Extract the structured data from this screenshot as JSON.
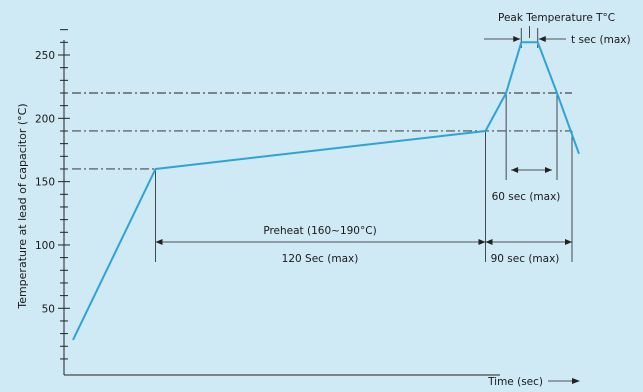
{
  "chart_data": {
    "type": "line",
    "title": "",
    "xlabel": "Time (sec)",
    "ylabel": "Temperature at lead of capacitor (°C)",
    "ylim": [
      10,
      275
    ],
    "y_ticks": [
      "50",
      "100",
      "150",
      "200",
      "250"
    ],
    "y_tick_values": [
      50,
      100,
      150,
      200,
      250
    ],
    "grid": false,
    "series": [
      {
        "x": [
          0,
          30,
          150,
          157.5,
          163,
          169,
          176,
          184
        ],
        "y": [
          25,
          160,
          190,
          220,
          260,
          260,
          220,
          172
        ]
      }
    ],
    "reference_levels": [
      160,
      190,
      220
    ],
    "annotations": {
      "peak": "Peak Temperature T°C",
      "t_sec": "t sec (max)",
      "sixty": "60 sec (max)",
      "preheat": "Preheat (160~190°C)",
      "preheat_time": "120 Sec (max)",
      "ninety": "90 sec (max)"
    },
    "colors": {
      "background": "#cfe9f5",
      "curve": "#2ea3d6",
      "axis": "#222222"
    }
  }
}
